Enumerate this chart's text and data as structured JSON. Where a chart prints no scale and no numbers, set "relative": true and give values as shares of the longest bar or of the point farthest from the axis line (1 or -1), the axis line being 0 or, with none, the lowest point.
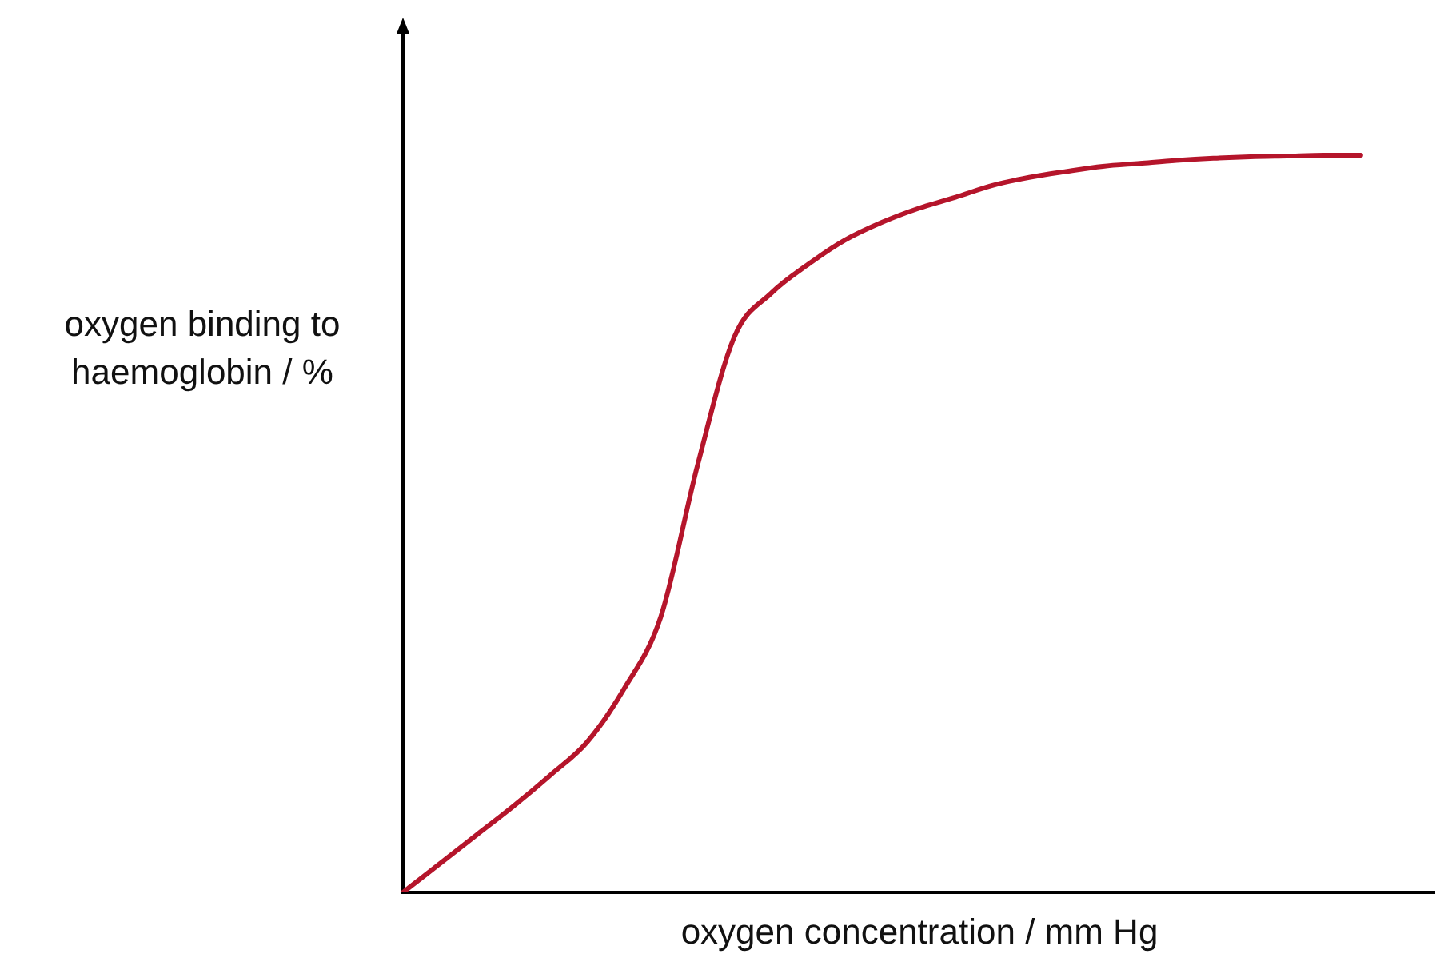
{
  "chart_data": {
    "type": "line",
    "relative": true,
    "xlabel": "oxygen concentration / mm Hg",
    "ylabel": "oxygen binding to haemoglobin / %",
    "categories": [
      null,
      null,
      null,
      null,
      null,
      null,
      null,
      null,
      null,
      null,
      null,
      null,
      null,
      null,
      null,
      null,
      null,
      null,
      null,
      null,
      null,
      null,
      null,
      null,
      null,
      null,
      null,
      null,
      null
    ],
    "series": [
      {
        "color": "#b5152b",
        "values": [
          0,
          0.039,
          0.078,
          0.117,
          0.159,
          0.204,
          0.276,
          0.374,
          0.58,
          0.754,
          0.813,
          0.852,
          0.885,
          0.909,
          0.928,
          0.943,
          0.959,
          0.97,
          0.978,
          0.985,
          0.989,
          0.993,
          0.996,
          0.998,
          0.999,
          1,
          1,
          null,
          null
        ]
      }
    ],
    "grid": false,
    "legend": false,
    "tick_labels": false,
    "marker": "none",
    "line_style": "solid"
  }
}
